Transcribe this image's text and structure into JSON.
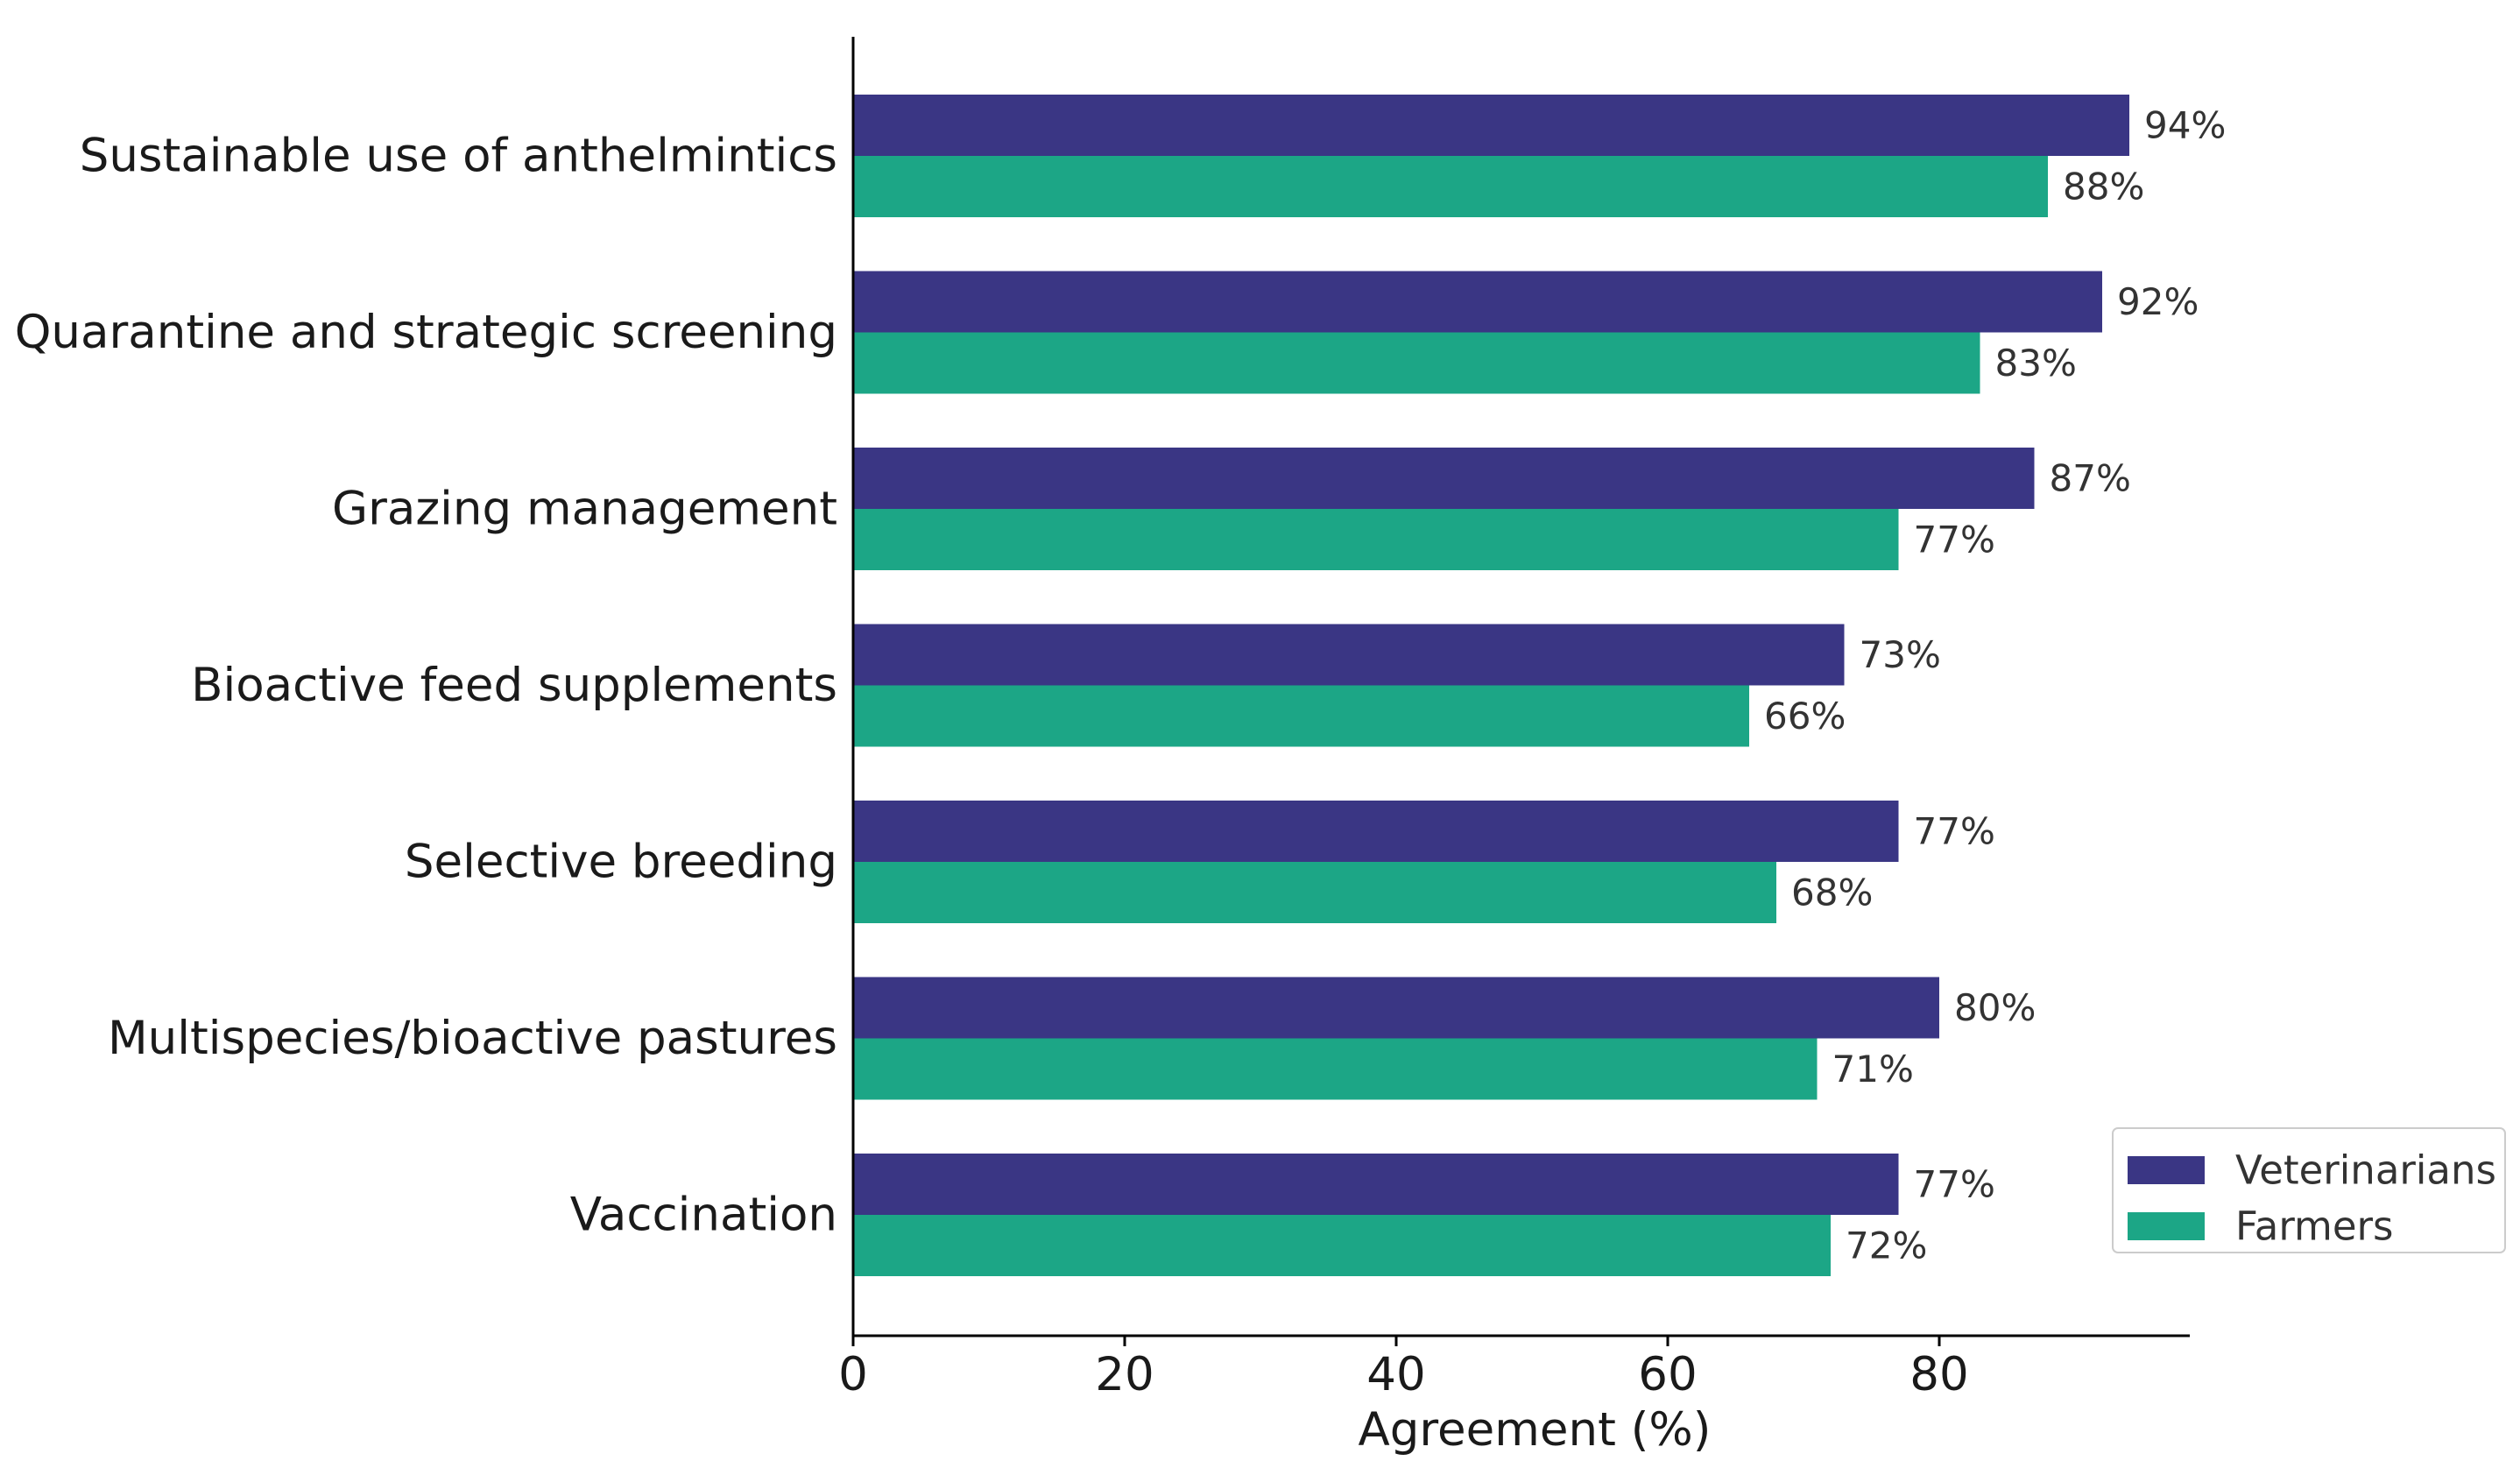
{
  "chart_data": {
    "type": "bar",
    "orientation": "horizontal",
    "categories": [
      "Sustainable use of anthelmintics",
      "Quarantine and strategic screening",
      "Grazing management",
      "Bioactive feed supplements",
      "Selective breeding",
      "Multispecies/bioactive pastures",
      "Vaccination"
    ],
    "series": [
      {
        "name": "Veterinarians",
        "color": "#3a3684",
        "values": [
          94,
          92,
          87,
          73,
          77,
          80,
          77
        ],
        "labels": [
          "94%",
          "92%",
          "87%",
          "73%",
          "77%",
          "80%",
          "77%"
        ]
      },
      {
        "name": "Farmers",
        "color": "#1ca686",
        "values": [
          88,
          83,
          77,
          66,
          68,
          71,
          72
        ],
        "labels": [
          "88%",
          "83%",
          "77%",
          "66%",
          "68%",
          "71%",
          "72%"
        ]
      }
    ],
    "xlabel": "Agreement (%)",
    "ylabel": "",
    "xlim": [
      0,
      99
    ],
    "xticks": [
      0,
      20,
      40,
      60,
      80
    ],
    "xtick_labels": [
      "0",
      "20",
      "40",
      "60",
      "80"
    ],
    "grid": false,
    "legend_position": "bottom-right"
  }
}
